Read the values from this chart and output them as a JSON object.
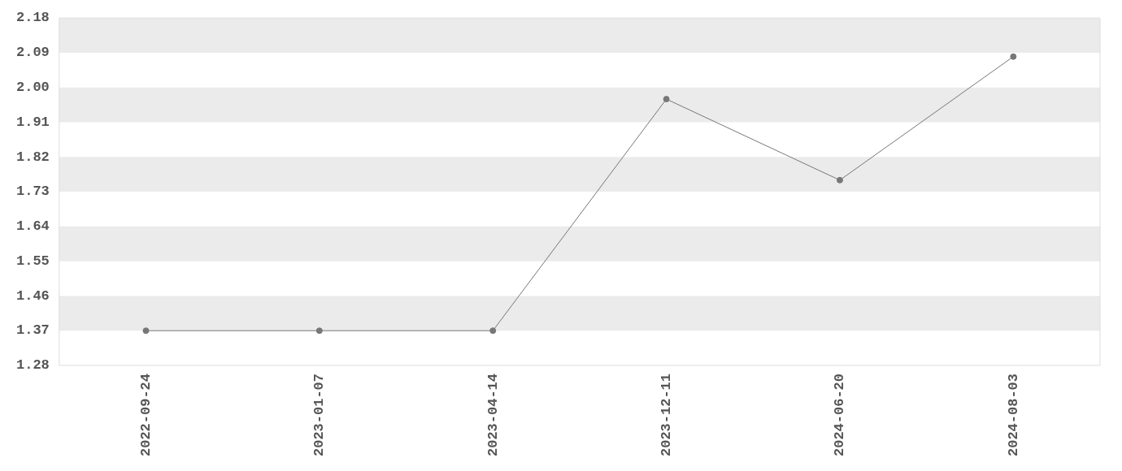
{
  "chart_data": {
    "type": "line",
    "categories": [
      "2022-09-24",
      "2023-01-07",
      "2023-04-14",
      "2023-12-11",
      "2024-06-20",
      "2024-08-03"
    ],
    "series": [
      {
        "color": "#777777",
        "values": [
          1.37,
          1.37,
          1.37,
          1.97,
          1.76,
          2.08
        ]
      }
    ],
    "ylim": [
      1.28,
      2.18
    ],
    "yticks": [
      1.28,
      1.37,
      1.46,
      1.55,
      1.64,
      1.73,
      1.82,
      1.91,
      {
        "value": 2,
        "label": "2.00"
      },
      2.09,
      2.18
    ],
    "legend": false,
    "marker": "circle",
    "line_style": "solid"
  }
}
